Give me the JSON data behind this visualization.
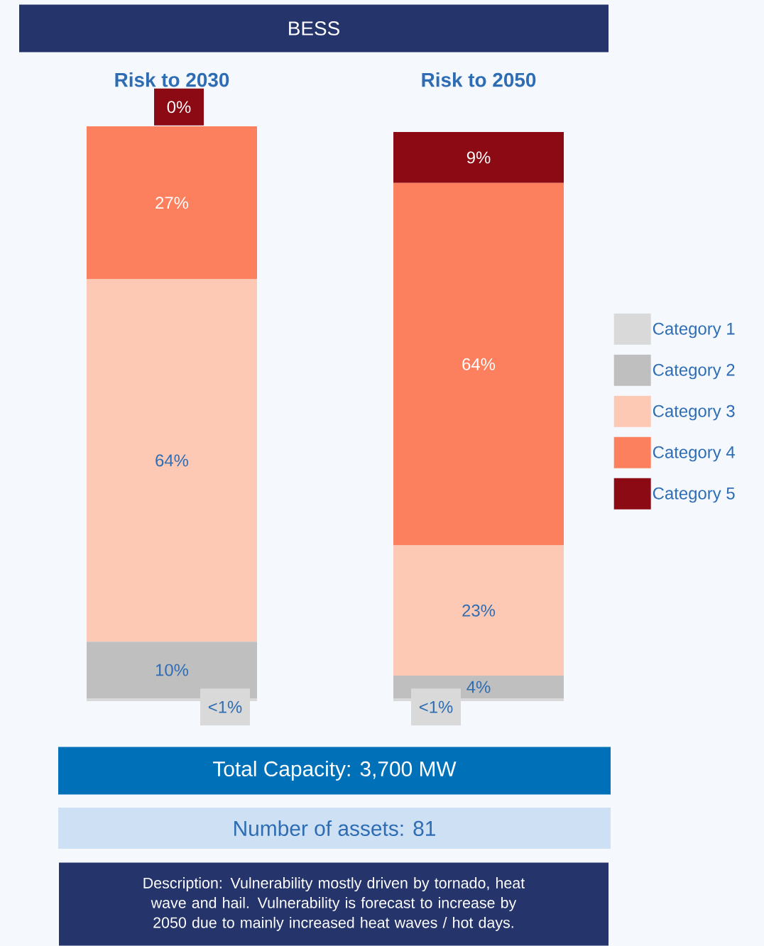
{
  "chart_data": {
    "type": "bar",
    "stacked": true,
    "title": "BESS",
    "categories": [
      "Risk to 2030",
      "Risk to 2050"
    ],
    "ylim": [
      0,
      101.5
    ],
    "tick_labels": "x",
    "legend": "right",
    "series": [
      {
        "name": "Category 1",
        "color": "#d9d9d9",
        "values": [
          0.5,
          0.5
        ],
        "value_labels": [
          "<1%",
          "<1%"
        ]
      },
      {
        "name": "Category 2",
        "color": "#bfbfbf",
        "values": [
          10,
          4
        ],
        "value_labels": [
          "10%",
          "4%"
        ]
      },
      {
        "name": "Category 3",
        "color": "#fdc9b4",
        "values": [
          64,
          23
        ],
        "value_labels": [
          "64%",
          "23%"
        ]
      },
      {
        "name": "Category 4",
        "color": "#fc7f5e",
        "values": [
          27,
          64
        ],
        "value_labels": [
          "27%",
          "64%"
        ]
      },
      {
        "name": "Category 5",
        "color": "#8c0a14",
        "values": [
          0,
          9
        ],
        "value_labels": [
          "0%",
          "9%"
        ]
      }
    ],
    "annotations": [
      "Total Capacity: 3,700 MW",
      "Number of assets: 81",
      "Description: Vulnerability mostly driven by tornado, heat wave and hail. Vulnerability is forecast to increase by 2050 due to mainly increased heat waves / hot days."
    ]
  }
}
